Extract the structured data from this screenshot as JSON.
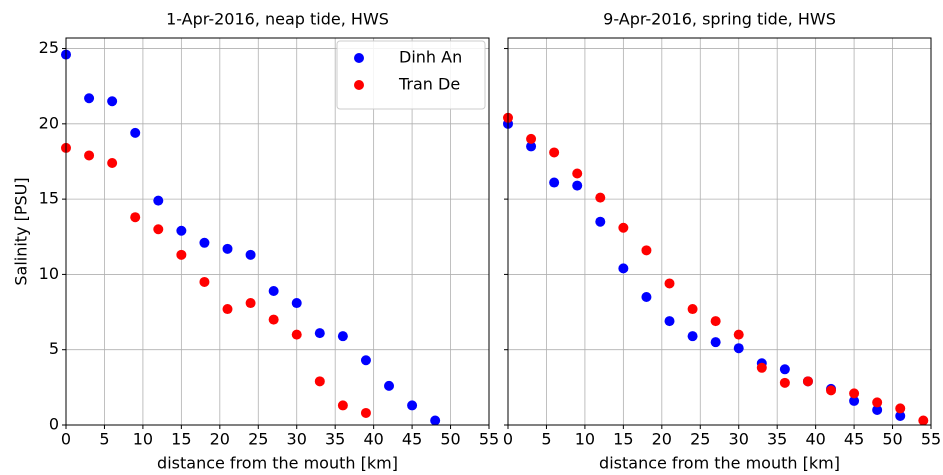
{
  "chart_data": [
    {
      "type": "scatter",
      "title": "1-Apr-2016, neap tide, HWS",
      "xlabel": "distance from the mouth [km]",
      "ylabel": "Salinity [PSU]",
      "xlim": [
        0,
        55
      ],
      "ylim": [
        0,
        25.7
      ],
      "xticks": [
        0,
        5,
        10,
        15,
        20,
        25,
        30,
        35,
        40,
        45,
        50,
        55
      ],
      "yticks": [
        0,
        5,
        10,
        15,
        20,
        25
      ],
      "grid": true,
      "legend": "upper right",
      "y_tick_labels": true,
      "series": [
        {
          "name": "Dinh An",
          "color": "#0000ff",
          "x": [
            0,
            3,
            6,
            9,
            12,
            15,
            18,
            21,
            24,
            27,
            30,
            33,
            36,
            39,
            42,
            45,
            48
          ],
          "values": [
            24.6,
            21.7,
            21.5,
            19.4,
            14.9,
            12.9,
            12.1,
            11.7,
            11.3,
            8.9,
            8.1,
            6.1,
            5.9,
            4.3,
            2.6,
            1.3,
            0.3
          ]
        },
        {
          "name": "Tran De",
          "color": "#ff0000",
          "x": [
            0,
            3,
            6,
            9,
            12,
            15,
            18,
            21,
            24,
            27,
            30,
            33,
            36,
            39
          ],
          "values": [
            18.4,
            17.9,
            17.4,
            13.8,
            13.0,
            11.3,
            9.5,
            7.7,
            8.1,
            7.0,
            6.0,
            2.9,
            1.3,
            0.8
          ]
        }
      ]
    },
    {
      "type": "scatter",
      "title": "9-Apr-2016, spring tide, HWS",
      "xlabel": "distance from the mouth [km]",
      "xlim": [
        0,
        55
      ],
      "ylim": [
        0,
        25.7
      ],
      "xticks": [
        0,
        5,
        10,
        15,
        20,
        25,
        30,
        35,
        40,
        45,
        50,
        55
      ],
      "yticks": [
        0,
        5,
        10,
        15,
        20,
        25
      ],
      "grid": true,
      "y_tick_labels": false,
      "series": [
        {
          "color": "#0000ff",
          "x": [
            0,
            3,
            6,
            9,
            12,
            15,
            18,
            21,
            24,
            27,
            30,
            33,
            36,
            39,
            42,
            45,
            48,
            51
          ],
          "values": [
            20.0,
            18.5,
            16.1,
            15.9,
            13.5,
            10.4,
            8.5,
            6.9,
            5.9,
            5.5,
            5.1,
            4.1,
            3.7,
            2.9,
            2.4,
            1.6,
            1.0,
            0.6
          ]
        },
        {
          "color": "#ff0000",
          "x": [
            0,
            3,
            6,
            9,
            12,
            15,
            18,
            21,
            24,
            27,
            30,
            33,
            36,
            39,
            42,
            45,
            48,
            51,
            54
          ],
          "values": [
            20.4,
            19.0,
            18.1,
            16.7,
            15.1,
            13.1,
            11.6,
            9.4,
            7.7,
            6.9,
            6.0,
            3.8,
            2.8,
            2.9,
            2.3,
            2.1,
            1.5,
            1.1,
            0.3
          ]
        }
      ]
    }
  ]
}
